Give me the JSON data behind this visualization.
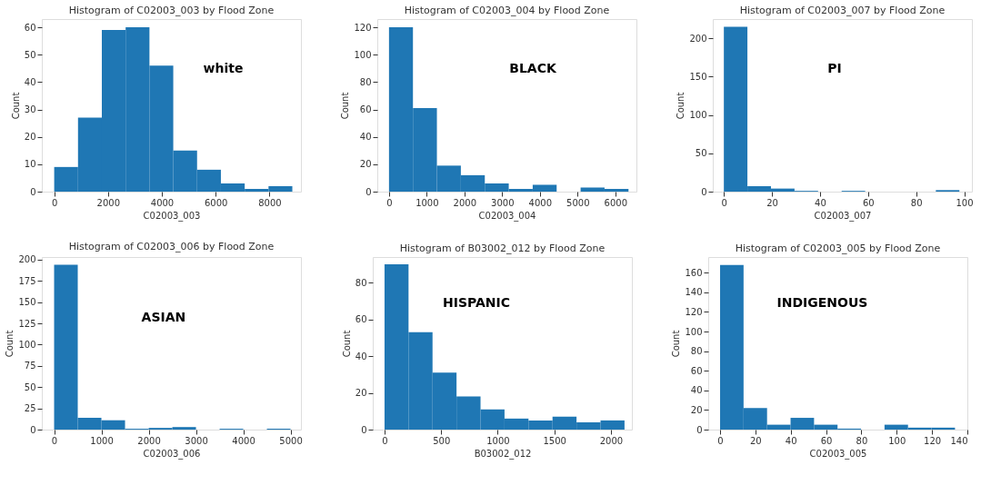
{
  "chart_data": [
    {
      "type": "histogram",
      "title": "Histogram of C02003_003 by Flood Zone",
      "xlabel": "C02003_003",
      "ylabel": "Count",
      "bins": [
        0,
        885,
        1770,
        2655,
        3540,
        4425,
        5310,
        6195,
        7080,
        7965,
        8850
      ],
      "values": [
        9,
        27,
        59,
        60,
        46,
        15,
        8,
        3,
        1,
        2
      ],
      "color": "#1f77b4",
      "xlim": [
        -460,
        9170
      ],
      "ylim": [
        0,
        63
      ],
      "xticks": [
        0,
        2000,
        4000,
        6000,
        8000
      ],
      "yticks": [
        0,
        10,
        20,
        30,
        40,
        50,
        60
      ],
      "grid": false,
      "annotations": [
        "white"
      ]
    },
    {
      "type": "histogram",
      "title": "Histogram of C02003_004 by Flood Zone",
      "xlabel": "C02003_004",
      "ylabel": "Count",
      "bins": [
        0,
        635,
        1270,
        1905,
        2540,
        3175,
        3810,
        4445,
        5080,
        5715,
        6350
      ],
      "values": [
        120,
        61,
        19,
        12,
        6,
        2,
        5,
        0,
        3,
        2
      ],
      "color": "#1f77b4",
      "xlim": [
        -310,
        6560
      ],
      "ylim": [
        0,
        126
      ],
      "xticks": [
        0,
        1000,
        2000,
        3000,
        4000,
        5000,
        6000
      ],
      "yticks": [
        0,
        20,
        40,
        60,
        80,
        100,
        120
      ],
      "grid": false,
      "annotations": [
        "BLACK"
      ]
    },
    {
      "type": "histogram",
      "title": "Histogram of C02003_007 by Flood Zone",
      "xlabel": "C02003_007",
      "ylabel": "Count",
      "bins": [
        0,
        9.8,
        19.6,
        29.4,
        39.2,
        49,
        58.8,
        68.6,
        78.4,
        88.2,
        98
      ],
      "values": [
        215,
        7,
        4,
        1,
        0,
        1,
        0,
        0,
        0,
        2
      ],
      "color": "#1f77b4",
      "xlim": [
        -4.6,
        103.2
      ],
      "ylim": [
        0,
        225
      ],
      "xticks": [
        0,
        20,
        40,
        60,
        80,
        100
      ],
      "yticks": [
        0,
        50,
        100,
        150,
        200
      ],
      "grid": false,
      "annotations": [
        "PI"
      ]
    },
    {
      "type": "histogram",
      "title": "Histogram of C02003_006 by Flood Zone",
      "xlabel": "C02003_006",
      "ylabel": "Count",
      "bins": [
        0,
        500,
        1000,
        1500,
        2000,
        2500,
        3000,
        3500,
        4000,
        4500,
        5000
      ],
      "values": [
        194,
        14,
        11,
        1,
        2,
        3,
        0,
        1,
        0,
        1
      ],
      "color": "#1f77b4",
      "xlim": [
        -260,
        5220
      ],
      "ylim": [
        0,
        203
      ],
      "xticks": [
        0,
        1000,
        2000,
        3000,
        4000,
        5000
      ],
      "yticks": [
        0,
        25,
        50,
        75,
        100,
        125,
        150,
        175,
        200
      ],
      "grid": false,
      "annotations": [
        "ASIAN"
      ]
    },
    {
      "type": "histogram",
      "title": "Histogram of B03002_012 by Flood Zone",
      "xlabel": "B03002_012",
      "ylabel": "Count",
      "bins": [
        0,
        212,
        424,
        636,
        848,
        1060,
        1272,
        1484,
        1696,
        1908,
        2120
      ],
      "values": [
        90,
        53,
        31,
        18,
        11,
        6,
        5,
        7,
        4,
        5
      ],
      "color": "#1f77b4",
      "xlim": [
        -104,
        2185
      ],
      "ylim": [
        0,
        94
      ],
      "xticks": [
        0,
        500,
        1000,
        1500,
        2000
      ],
      "yticks": [
        0,
        20,
        40,
        60,
        80
      ],
      "grid": false,
      "annotations": [
        "HISPANIC"
      ]
    },
    {
      "type": "histogram",
      "title": "Histogram of C02003_005 by Flood Zone",
      "xlabel": "C02003_005",
      "ylabel": "Count",
      "bins": [
        0,
        13.3,
        26.6,
        39.9,
        53.2,
        66.5,
        79.8,
        93.1,
        106.4,
        119.7,
        133
      ],
      "values": [
        168,
        22,
        5,
        12,
        5,
        1,
        0,
        5,
        2,
        2
      ],
      "color": "#1f77b4",
      "xlim": [
        -6.7,
        140
      ],
      "ylim": [
        0,
        176
      ],
      "xticks": [
        0,
        20,
        40,
        60,
        80,
        100,
        120,
        140
      ],
      "yticks": [
        0,
        20,
        40,
        60,
        80,
        100,
        120,
        140,
        160
      ],
      "grid": false,
      "annotations": [
        "INDIGENOUS"
      ]
    }
  ]
}
